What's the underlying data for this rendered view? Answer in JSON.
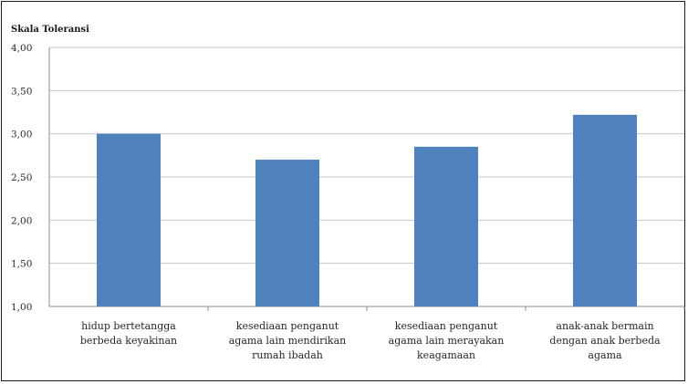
{
  "chart_data": {
    "type": "bar",
    "ylabel": "Skala Toleransi",
    "xlabel": "",
    "ylim": [
      1.0,
      4.0
    ],
    "yticks": [
      "1,00",
      "1,50",
      "2,00",
      "2,50",
      "3,00",
      "3,50",
      "4,00"
    ],
    "ytick_values": [
      1.0,
      1.5,
      2.0,
      2.5,
      3.0,
      3.5,
      4.0
    ],
    "grid": true,
    "bar_color": "#4f81bd",
    "categories": [
      [
        "hidup bertetangga",
        "berbeda keyakinan"
      ],
      [
        "kesediaan penganut",
        "agama lain mendirikan",
        "rumah ibadah"
      ],
      [
        "kesediaan penganut",
        "agama lain merayakan",
        "keagamaan"
      ],
      [
        "anak-anak bermain",
        "dengan anak berbeda",
        "agama"
      ]
    ],
    "values": [
      3.0,
      2.7,
      2.85,
      3.22
    ]
  }
}
